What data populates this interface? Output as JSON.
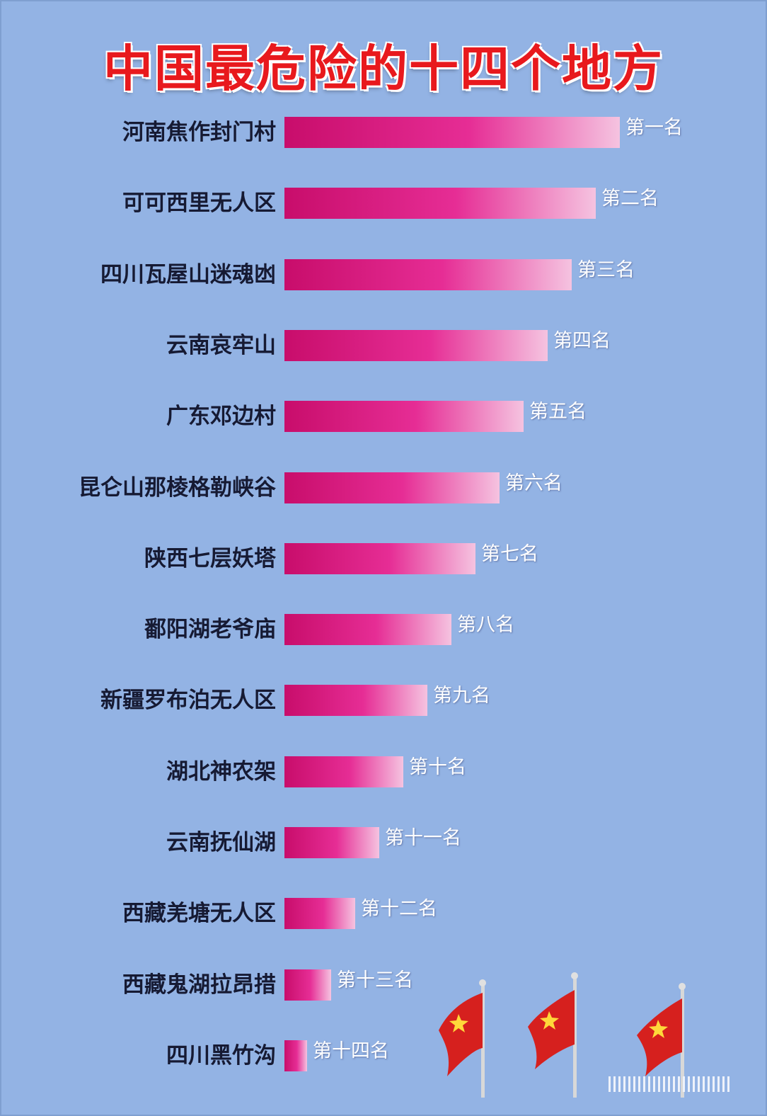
{
  "title": "中国最危险的十四个地方",
  "chart_data": {
    "type": "bar",
    "orientation": "horizontal",
    "title": "中国最危险的十四个地方",
    "categories": [
      "河南焦作封门村",
      "可可西里无人区",
      "四川瓦屋山迷魂凼",
      "云南哀牢山",
      "广东邓边村",
      "昆仑山那棱格勒峡谷",
      "陕西七层妖塔",
      "鄱阳湖老爷庙",
      "新疆罗布泊无人区",
      "湖北神农架",
      "云南抚仙湖",
      "西藏羌塘无人区",
      "西藏鬼湖拉昂措",
      "四川黑竹沟"
    ],
    "rank_labels": [
      "第一名",
      "第二名",
      "第三名",
      "第四名",
      "第五名",
      "第六名",
      "第七名",
      "第八名",
      "第九名",
      "第十名",
      "第十一名",
      "第十二名",
      "第十三名",
      "第十四名"
    ],
    "values": [
      14,
      13,
      12,
      11,
      10,
      9,
      8,
      7,
      6,
      5,
      4,
      3,
      2,
      1
    ],
    "bar_gradient": [
      "#c80d6b",
      "#e62d95",
      "#f5c3e0"
    ]
  },
  "colors": {
    "background": "#93b3e4",
    "title": "#e8191d",
    "label": "#161a33",
    "rank_text": "#ffffff"
  },
  "decoration": {
    "flags": [
      "flag-icon",
      "flag-icon",
      "flag-icon"
    ]
  }
}
